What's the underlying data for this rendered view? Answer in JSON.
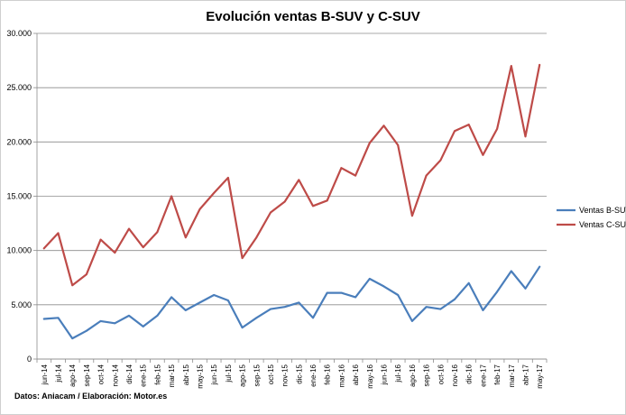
{
  "chart_data": {
    "type": "line",
    "title": "Evolución ventas B-SUV y C-SUV",
    "xlabel": "",
    "ylabel": "",
    "ylim": [
      0,
      30000
    ],
    "yticks": [
      "0",
      "5.000",
      "10.000",
      "15.000",
      "20.000",
      "25.000",
      "30.000"
    ],
    "ytick_values": [
      0,
      5000,
      10000,
      15000,
      20000,
      25000,
      30000
    ],
    "grid": true,
    "legend_position": "right",
    "categories": [
      "jun-14",
      "jul-14",
      "ago-14",
      "sep-14",
      "oct-14",
      "nov-14",
      "dic-14",
      "ene-15",
      "feb-15",
      "mar-15",
      "abr-15",
      "may-15",
      "jun-15",
      "jul-15",
      "ago-15",
      "sep-15",
      "oct-15",
      "nov-15",
      "dic-15",
      "ene-16",
      "feb-16",
      "mar-16",
      "abr-16",
      "may-16",
      "jun-16",
      "jul-16",
      "ago-16",
      "sep-16",
      "oct-16",
      "nov-16",
      "dic-16",
      "ene-17",
      "feb-17",
      "mar-17",
      "abr-17",
      "may-17"
    ],
    "series": [
      {
        "name": "Ventas B-SUV",
        "color": "#4a7ebb",
        "values": [
          3700,
          3800,
          1900,
          2600,
          3500,
          3300,
          4000,
          3000,
          4000,
          5700,
          4500,
          5200,
          5900,
          5400,
          2900,
          3800,
          4600,
          4800,
          5200,
          3800,
          6100,
          6100,
          5700,
          7400,
          6700,
          5900,
          3500,
          4800,
          4600,
          5500,
          7000,
          4500,
          6200,
          8100,
          6500,
          8500
        ]
      },
      {
        "name": "Ventas C-SUV",
        "color": "#be4b48",
        "values": [
          10200,
          11600,
          6800,
          7800,
          11000,
          9800,
          12000,
          10300,
          11700,
          15000,
          11200,
          13800,
          15300,
          16700,
          9300,
          11200,
          13500,
          14500,
          16500,
          14100,
          14600,
          17600,
          16900,
          19900,
          21500,
          19700,
          13200,
          16900,
          18300,
          21000,
          21600,
          18800,
          21200,
          27000,
          20500,
          27100
        ]
      }
    ]
  },
  "footer": {
    "source": "Datos: Aniacam  / Elaboración: Motor.es"
  }
}
